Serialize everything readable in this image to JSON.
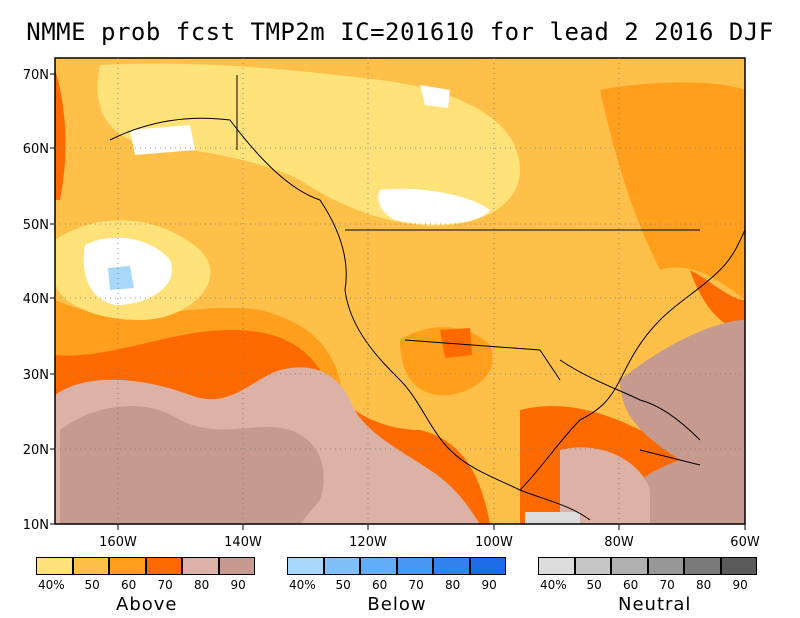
{
  "title": "NMME prob fcst TMP2m IC=201610 for lead 2 2016 DJF",
  "lat_labels": [
    "70N",
    "60N",
    "50N",
    "40N",
    "30N",
    "20N",
    "10N"
  ],
  "lon_labels": [
    "160W",
    "140W",
    "120W",
    "100W",
    "80W",
    "60W"
  ],
  "legends": [
    {
      "name": "Above",
      "ticks": [
        "40%",
        "50",
        "60",
        "70",
        "80",
        "90"
      ],
      "colors": [
        "#ffe27a",
        "#ffc04a",
        "#ff9f1c",
        "#ff6a00",
        "#dcb2a6",
        "#c69a8e"
      ]
    },
    {
      "name": "Below",
      "ticks": [
        "40%",
        "50",
        "60",
        "70",
        "80",
        "90"
      ],
      "colors": [
        "#a6d8fa",
        "#7fc0f8",
        "#62adf5",
        "#4897f2",
        "#3283ee",
        "#1f6ce8"
      ]
    },
    {
      "name": "Neutral",
      "ticks": [
        "40%",
        "50",
        "60",
        "70",
        "80",
        "90"
      ],
      "colors": [
        "#dcdcdc",
        "#c6c6c6",
        "#b0b0b0",
        "#979797",
        "#7a7a7a",
        "#5a5a5a"
      ]
    }
  ]
}
